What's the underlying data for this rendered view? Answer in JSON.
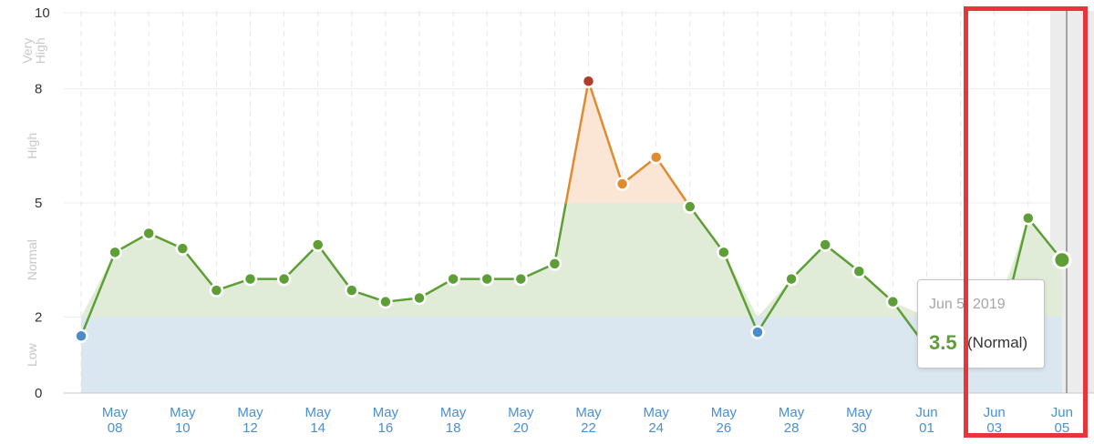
{
  "chart_data": {
    "type": "area",
    "ylim": [
      0,
      10
    ],
    "y_ticks": [
      "0",
      "2",
      "5",
      "8",
      "10"
    ],
    "bands": [
      {
        "label": "Low",
        "from": 0,
        "to": 2,
        "color": "#dae6f0"
      },
      {
        "label": "Normal",
        "from": 2,
        "to": 5,
        "color": "#e1ecd8"
      },
      {
        "label": "High",
        "from": 5,
        "to": 8,
        "color": "#fbe5d4"
      },
      {
        "label": "Very High",
        "from": 8,
        "to": 10,
        "color": "#f6d6d2"
      }
    ],
    "x_ticks": [
      [
        "May",
        "08"
      ],
      [
        "May",
        "10"
      ],
      [
        "May",
        "12"
      ],
      [
        "May",
        "14"
      ],
      [
        "May",
        "16"
      ],
      [
        "May",
        "18"
      ],
      [
        "May",
        "20"
      ],
      [
        "May",
        "22"
      ],
      [
        "May",
        "24"
      ],
      [
        "May",
        "26"
      ],
      [
        "May",
        "28"
      ],
      [
        "May",
        "30"
      ],
      [
        "Jun",
        "01"
      ],
      [
        "Jun",
        "03"
      ],
      [
        "Jun",
        "05"
      ]
    ],
    "x": [
      "May 07",
      "May 08",
      "May 09",
      "May 10",
      "May 11",
      "May 12",
      "May 13",
      "May 14",
      "May 15",
      "May 16",
      "May 17",
      "May 18",
      "May 19",
      "May 20",
      "May 21",
      "May 22",
      "May 23",
      "May 24",
      "May 25",
      "May 26",
      "May 27",
      "May 28",
      "May 29",
      "May 30",
      "May 31",
      "Jun 01",
      "Jun 02",
      "Jun 03",
      "Jun 04",
      "Jun 05"
    ],
    "values": [
      1.5,
      3.7,
      4.2,
      3.8,
      2.7,
      3.0,
      3.0,
      3.9,
      2.7,
      2.4,
      2.5,
      3.0,
      3.0,
      3.0,
      3.4,
      8.2,
      5.5,
      6.2,
      4.9,
      3.7,
      1.6,
      3.0,
      3.9,
      3.2,
      2.4,
      1.2,
      1.5,
      1.0,
      4.6,
      3.5
    ],
    "point_colors": {
      "low": "#4a8bc9",
      "normal": "#5d9e36",
      "high": "#df8b2f",
      "very_high": "#b33b2c"
    },
    "line_colors": {
      "normal": "#5d9e36",
      "high": "#df8b2f"
    },
    "hidden_points": [
      25,
      26,
      27
    ],
    "highlighted_point": 29,
    "grid": true
  },
  "tooltip": {
    "date": "Jun 5, 2019",
    "value": "3.5",
    "status": "(Normal)"
  }
}
